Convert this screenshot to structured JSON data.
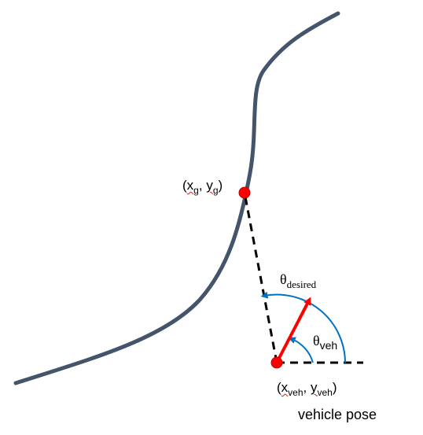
{
  "colors": {
    "path_curve": "#44546a",
    "point": "#ff0000",
    "heading_arrow": "#ff0000",
    "angle_arcs": "#0070c0",
    "dashed_lines": "#000000",
    "spellcheck_underline": "#d02020"
  },
  "labels": {
    "goal_point": {
      "open": "(",
      "x": "x",
      "x_sub": "g",
      "comma": ", ",
      "y": "y",
      "y_sub": "g",
      "close": ")"
    },
    "theta_desired": {
      "symbol": "θ",
      "sub": "desired"
    },
    "theta_veh": {
      "symbol": "θ",
      "sub": "veh"
    },
    "vehicle_point": {
      "open": "(",
      "x": "x",
      "x_sub": "veh",
      "comma": ", ",
      "y": "y",
      "y_sub": "veh",
      "close": ")"
    },
    "vehicle_pose": "vehicle pose"
  }
}
